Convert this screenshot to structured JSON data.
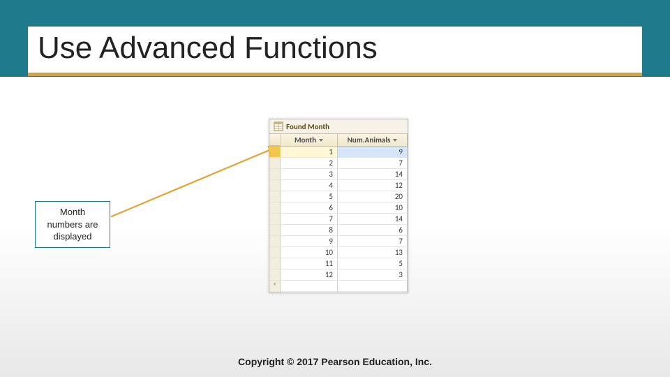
{
  "slide": {
    "title": "Use Advanced Functions",
    "header_color": "#1e7a8a",
    "accent_color": "#c4a456",
    "background_gradient": [
      "#ffffff",
      "#e8e8e8"
    ]
  },
  "callout": {
    "line1": "Month",
    "line2": "numbers are",
    "line3": "displayed",
    "border_color": "#1e7a8a",
    "arrow_color": "#e0a336"
  },
  "datasheet": {
    "tab_label": "Found Month",
    "columns": [
      "Month",
      "Num.Animals"
    ],
    "rows": [
      {
        "month": 1,
        "num": 9,
        "selected": true
      },
      {
        "month": 2,
        "num": 7,
        "selected": false
      },
      {
        "month": 3,
        "num": 14,
        "selected": false
      },
      {
        "month": 4,
        "num": 12,
        "selected": false
      },
      {
        "month": 5,
        "num": 20,
        "selected": false
      },
      {
        "month": 6,
        "num": 10,
        "selected": false
      },
      {
        "month": 7,
        "num": 14,
        "selected": false
      },
      {
        "month": 8,
        "num": 6,
        "selected": false
      },
      {
        "month": 9,
        "num": 7,
        "selected": false
      },
      {
        "month": 10,
        "num": 13,
        "selected": false
      },
      {
        "month": 11,
        "num": 5,
        "selected": false
      },
      {
        "month": 12,
        "num": 3,
        "selected": false
      }
    ],
    "header_bg": "#f5eed8",
    "grid_color": "#d6d0c0",
    "selected_row_highlight_col1": "#fff7d6",
    "selected_row_highlight_col2": "#d4e6f7",
    "row_selector_active": "#f2c74b"
  },
  "footer": {
    "text": "Copyright © 2017 Pearson Education, Inc."
  }
}
